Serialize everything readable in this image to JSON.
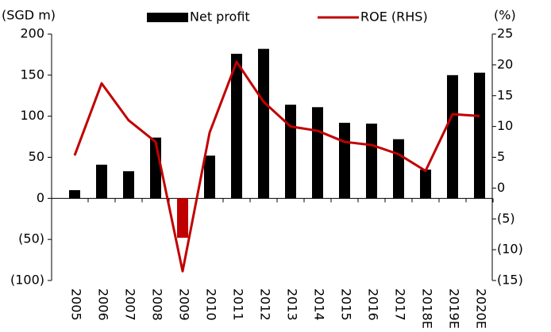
{
  "chart_data": {
    "type": "bar_line",
    "y_label": "(SGD m)",
    "y2_label": "(%)",
    "categories": [
      "2005",
      "2006",
      "2007",
      "2008",
      "2009",
      "2010",
      "2011",
      "2012",
      "2013",
      "2014",
      "2015",
      "2016",
      "2017",
      "2018E",
      "2019E",
      "2020E"
    ],
    "series": [
      {
        "name": "Net profit",
        "type": "bar",
        "color": "#000000",
        "axis": "y",
        "colors": [
          "#000000",
          "#000000",
          "#000000",
          "#000000",
          "#c00000",
          "#000000",
          "#000000",
          "#000000",
          "#000000",
          "#000000",
          "#000000",
          "#000000",
          "#000000",
          "#000000",
          "#000000",
          "#000000"
        ],
        "values": [
          10,
          41,
          33,
          74,
          -48,
          52,
          176,
          182,
          114,
          111,
          92,
          91,
          72,
          35,
          150,
          153
        ]
      },
      {
        "name": "ROE (RHS)",
        "type": "line",
        "color": "#c00000",
        "axis": "y2",
        "values": [
          5.3,
          17,
          11,
          7.5,
          -13.5,
          9,
          20.5,
          14,
          10,
          9.3,
          7.5,
          7,
          5.5,
          2.8,
          12,
          11.7
        ]
      }
    ],
    "ylim": [
      -100,
      200
    ],
    "yticks": [
      {
        "value": -100,
        "label": "(100)"
      },
      {
        "value": -50,
        "label": "(50)"
      },
      0,
      50,
      100,
      150,
      200
    ],
    "y2lim": [
      -15,
      25
    ],
    "y2ticks": [
      {
        "value": -15,
        "label": "(15)"
      },
      {
        "value": -10,
        "label": "(10)"
      },
      {
        "value": -5,
        "label": "(5)"
      },
      0,
      5,
      10,
      15,
      20,
      25
    ]
  }
}
